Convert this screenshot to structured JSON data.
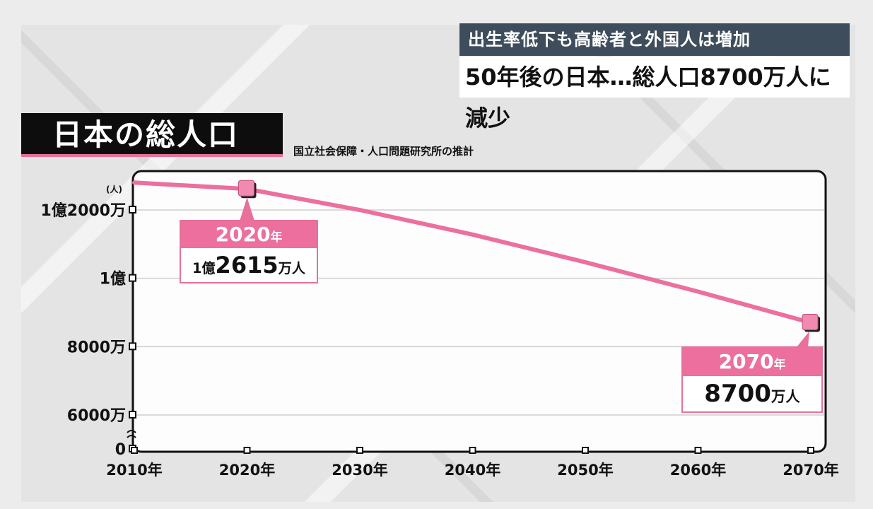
{
  "headline": {
    "top": "出生率低下も高齢者と外国人は増加",
    "main": "50年後の日本…総人口8700万人に減少"
  },
  "chart_title": "日本の総人口",
  "source": "国立社会保障・人口問題研究所の推計",
  "callouts": {
    "c2020": {
      "year": "2020",
      "year_unit": "年",
      "value_prefix": "1億",
      "value": "2615",
      "value_unit": "万人"
    },
    "c2070": {
      "year": "2070",
      "year_unit": "年",
      "value": "8700",
      "value_unit": "万人"
    }
  },
  "colors": {
    "line": "#ec6f9e",
    "accent": "#e8709a",
    "headline_bg": "#3e4d5c",
    "title_bg": "#0d0d0d"
  },
  "chart_data": {
    "type": "line",
    "x": [
      2010,
      2020,
      2030,
      2040,
      2050,
      2060,
      2070
    ],
    "x_tick_labels": [
      "2010年",
      "2020年",
      "2030年",
      "2040年",
      "2050年",
      "2060年",
      "2070年"
    ],
    "series": [
      {
        "values": [
          12800,
          12615,
          12000,
          11280,
          10470,
          9610,
          8700
        ]
      }
    ],
    "y_unit_label": "(人)",
    "y_ticks": [
      0,
      6000,
      8000,
      10000,
      12000
    ],
    "y_tick_labels": [
      "0",
      "6000万",
      "8000万",
      "1億",
      "1億2000万"
    ],
    "ylim": [
      5000,
      12900
    ],
    "y_axis_break": true,
    "highlighted_points": [
      2020,
      2070
    ],
    "grid": true
  }
}
